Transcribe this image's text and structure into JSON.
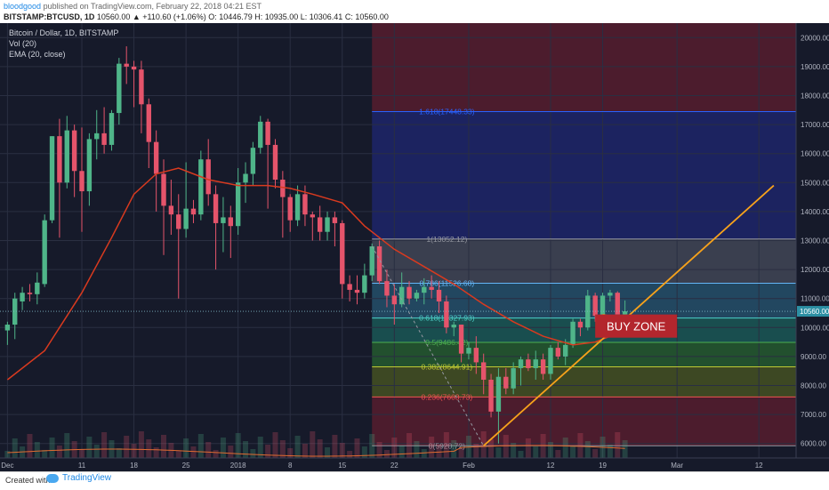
{
  "header": {
    "author": "bloodgood",
    "published": "published on TradingView.com, February 22, 2018 04:21 EST",
    "symbol": "BITSTAMP:BTCUSD, 1D",
    "quote": "10560.00 ▲ +110.60 (+1.06%) O: 10446.79 H: 10935.00 L: 10306.41 C: 10560.00"
  },
  "legend": {
    "title": "Bitcoin / Dollar, 1D, BITSTAMP",
    "vol": "Vol (20)",
    "ema": "EMA (20, close)"
  },
  "footer": {
    "created": "Created with",
    "brand": "TradingView"
  },
  "chart_data": {
    "type": "candlestick",
    "y_axis": {
      "range": [
        5500,
        20500
      ],
      "ticks": [
        "20000.00",
        "19000.00",
        "18000.00",
        "17000.00",
        "16000.00",
        "15000.00",
        "14000.00",
        "13000.00",
        "12000.00",
        "11000.00",
        "10000.00",
        "9000.00",
        "8000.00",
        "7000.00",
        "6000.00"
      ],
      "tick_values": [
        20000,
        19000,
        18000,
        17000,
        16000,
        15000,
        14000,
        13000,
        12000,
        11000,
        10000,
        9000,
        8000,
        7000,
        6000
      ]
    },
    "x_axis": {
      "ticks": [
        {
          "label": "Dec",
          "day": 0
        },
        {
          "label": "11",
          "day": 10
        },
        {
          "label": "18",
          "day": 17
        },
        {
          "label": "25",
          "day": 24
        },
        {
          "label": "2018",
          "day": 31
        },
        {
          "label": "8",
          "day": 38
        },
        {
          "label": "15",
          "day": 45
        },
        {
          "label": "22",
          "day": 52
        },
        {
          "label": "Feb",
          "day": 62
        },
        {
          "label": "12",
          "day": 73
        },
        {
          "label": "19",
          "day": 80
        },
        {
          "label": "Mar",
          "day": 90
        },
        {
          "label": "12",
          "day": 101
        }
      ],
      "day_range": [
        -1,
        106
      ]
    },
    "last_price": {
      "value": 10560,
      "label": "10560.00"
    },
    "candles": [
      {
        "o": 9900,
        "h": 10200,
        "l": 9400,
        "c": 10100
      },
      {
        "o": 10100,
        "h": 11200,
        "l": 9600,
        "c": 11000
      },
      {
        "o": 10900,
        "h": 11400,
        "l": 10600,
        "c": 11200
      },
      {
        "o": 11200,
        "h": 11500,
        "l": 10900,
        "c": 11150
      },
      {
        "o": 11150,
        "h": 11900,
        "l": 10800,
        "c": 11550
      },
      {
        "o": 11500,
        "h": 13900,
        "l": 11400,
        "c": 13700
      },
      {
        "o": 13700,
        "h": 16600,
        "l": 13600,
        "c": 16600
      },
      {
        "o": 16600,
        "h": 17200,
        "l": 13100,
        "c": 15000
      },
      {
        "o": 15000,
        "h": 17300,
        "l": 14800,
        "c": 16800
      },
      {
        "o": 16800,
        "h": 17000,
        "l": 14500,
        "c": 15400
      },
      {
        "o": 15400,
        "h": 16900,
        "l": 13300,
        "c": 14700
      },
      {
        "o": 14700,
        "h": 16700,
        "l": 14200,
        "c": 16500
      },
      {
        "o": 16500,
        "h": 17500,
        "l": 15800,
        "c": 16700
      },
      {
        "o": 16700,
        "h": 17600,
        "l": 16000,
        "c": 16300
      },
      {
        "o": 16300,
        "h": 17500,
        "l": 16100,
        "c": 17400
      },
      {
        "o": 17400,
        "h": 19300,
        "l": 17000,
        "c": 19100
      },
      {
        "o": 19100,
        "h": 19700,
        "l": 18400,
        "c": 19000
      },
      {
        "o": 19000,
        "h": 19200,
        "l": 17600,
        "c": 18900
      },
      {
        "o": 18900,
        "h": 19200,
        "l": 16700,
        "c": 17700
      },
      {
        "o": 17700,
        "h": 17900,
        "l": 15500,
        "c": 16400
      },
      {
        "o": 16400,
        "h": 16800,
        "l": 14000,
        "c": 15300
      },
      {
        "o": 15300,
        "h": 15800,
        "l": 12500,
        "c": 14200
      },
      {
        "o": 14200,
        "h": 15100,
        "l": 13200,
        "c": 13900
      },
      {
        "o": 13900,
        "h": 14600,
        "l": 11000,
        "c": 13400
      },
      {
        "o": 13400,
        "h": 15700,
        "l": 13100,
        "c": 14100
      },
      {
        "o": 14100,
        "h": 14400,
        "l": 13600,
        "c": 13900
      },
      {
        "o": 13900,
        "h": 16100,
        "l": 13700,
        "c": 15800
      },
      {
        "o": 15800,
        "h": 16500,
        "l": 14200,
        "c": 14600
      },
      {
        "o": 14600,
        "h": 14900,
        "l": 12000,
        "c": 13600
      },
      {
        "o": 13600,
        "h": 14500,
        "l": 12600,
        "c": 13800
      },
      {
        "o": 13800,
        "h": 14200,
        "l": 12400,
        "c": 13500
      },
      {
        "o": 13500,
        "h": 15500,
        "l": 13200,
        "c": 15000
      },
      {
        "o": 15000,
        "h": 15700,
        "l": 14300,
        "c": 15300
      },
      {
        "o": 15300,
        "h": 16400,
        "l": 14900,
        "c": 16200
      },
      {
        "o": 16200,
        "h": 17300,
        "l": 16000,
        "c": 17100
      },
      {
        "o": 17100,
        "h": 17200,
        "l": 14100,
        "c": 16300
      },
      {
        "o": 16300,
        "h": 16500,
        "l": 14800,
        "c": 15100
      },
      {
        "o": 15100,
        "h": 15400,
        "l": 13100,
        "c": 14500
      },
      {
        "o": 14500,
        "h": 14600,
        "l": 13300,
        "c": 13700
      },
      {
        "o": 13700,
        "h": 14900,
        "l": 13500,
        "c": 14600
      },
      {
        "o": 14600,
        "h": 14900,
        "l": 13500,
        "c": 13900
      },
      {
        "o": 13900,
        "h": 14000,
        "l": 13000,
        "c": 13800
      },
      {
        "o": 13800,
        "h": 14200,
        "l": 13000,
        "c": 13300
      },
      {
        "o": 13300,
        "h": 14000,
        "l": 13000,
        "c": 13800
      },
      {
        "o": 13800,
        "h": 14000,
        "l": 12800,
        "c": 13600
      },
      {
        "o": 13600,
        "h": 13700,
        "l": 11000,
        "c": 11500
      },
      {
        "o": 11500,
        "h": 11800,
        "l": 10900,
        "c": 11300
      },
      {
        "o": 11300,
        "h": 11800,
        "l": 10800,
        "c": 11200
      },
      {
        "o": 11200,
        "h": 12200,
        "l": 11000,
        "c": 11800
      },
      {
        "o": 11800,
        "h": 12900,
        "l": 11600,
        "c": 12800
      },
      {
        "o": 12800,
        "h": 13000,
        "l": 11500,
        "c": 11600
      },
      {
        "o": 11600,
        "h": 12000,
        "l": 10700,
        "c": 11100
      },
      {
        "o": 11100,
        "h": 11500,
        "l": 10100,
        "c": 10800
      },
      {
        "o": 10800,
        "h": 11900,
        "l": 10700,
        "c": 11400
      },
      {
        "o": 11400,
        "h": 11600,
        "l": 10800,
        "c": 11000
      },
      {
        "o": 11000,
        "h": 11300,
        "l": 10900,
        "c": 11200
      },
      {
        "o": 11200,
        "h": 11700,
        "l": 10800,
        "c": 11400
      },
      {
        "o": 11400,
        "h": 11800,
        "l": 11000,
        "c": 11300
      },
      {
        "o": 11300,
        "h": 11600,
        "l": 10500,
        "c": 10900
      },
      {
        "o": 10900,
        "h": 11100,
        "l": 9800,
        "c": 10000
      },
      {
        "o": 10000,
        "h": 10200,
        "l": 9700,
        "c": 10100
      },
      {
        "o": 10100,
        "h": 10100,
        "l": 8800,
        "c": 9100
      },
      {
        "o": 9100,
        "h": 9500,
        "l": 8900,
        "c": 9300
      },
      {
        "o": 9300,
        "h": 9700,
        "l": 8400,
        "c": 8800
      },
      {
        "o": 8800,
        "h": 9100,
        "l": 7700,
        "c": 8200
      },
      {
        "o": 8200,
        "h": 8400,
        "l": 6900,
        "c": 7100
      },
      {
        "o": 7100,
        "h": 8600,
        "l": 6000,
        "c": 8300
      },
      {
        "o": 8300,
        "h": 8600,
        "l": 7700,
        "c": 7900
      },
      {
        "o": 7900,
        "h": 8800,
        "l": 7700,
        "c": 8600
      },
      {
        "o": 8600,
        "h": 9000,
        "l": 8000,
        "c": 8900
      },
      {
        "o": 8900,
        "h": 9100,
        "l": 8500,
        "c": 8600
      },
      {
        "o": 8600,
        "h": 9200,
        "l": 8200,
        "c": 8900
      },
      {
        "o": 8900,
        "h": 9100,
        "l": 8200,
        "c": 8400
      },
      {
        "o": 8400,
        "h": 9400,
        "l": 8200,
        "c": 9300
      },
      {
        "o": 9300,
        "h": 9500,
        "l": 8900,
        "c": 9000
      },
      {
        "o": 9000,
        "h": 9600,
        "l": 8700,
        "c": 9400
      },
      {
        "o": 9400,
        "h": 10300,
        "l": 9300,
        "c": 10200
      },
      {
        "o": 10200,
        "h": 10300,
        "l": 9700,
        "c": 10000
      },
      {
        "o": 10000,
        "h": 11300,
        "l": 9900,
        "c": 11100
      },
      {
        "o": 11100,
        "h": 11200,
        "l": 10200,
        "c": 10400
      },
      {
        "o": 10400,
        "h": 11200,
        "l": 10200,
        "c": 11100
      },
      {
        "o": 11100,
        "h": 11300,
        "l": 10900,
        "c": 11200
      },
      {
        "o": 11200,
        "h": 11250,
        "l": 10500,
        "c": 10450
      },
      {
        "o": 10450,
        "h": 10935,
        "l": 10306,
        "c": 10560
      }
    ],
    "ema": [
      {
        "day": 0,
        "v": 8200
      },
      {
        "day": 5,
        "v": 9200
      },
      {
        "day": 10,
        "v": 11200
      },
      {
        "day": 14,
        "v": 13100
      },
      {
        "day": 17,
        "v": 14600
      },
      {
        "day": 20,
        "v": 15300
      },
      {
        "day": 23,
        "v": 15500
      },
      {
        "day": 27,
        "v": 15100
      },
      {
        "day": 31,
        "v": 14900
      },
      {
        "day": 35,
        "v": 14900
      },
      {
        "day": 38,
        "v": 14800
      },
      {
        "day": 41,
        "v": 14600
      },
      {
        "day": 45,
        "v": 14300
      },
      {
        "day": 48,
        "v": 13500
      },
      {
        "day": 52,
        "v": 12700
      },
      {
        "day": 56,
        "v": 12100
      },
      {
        "day": 60,
        "v": 11500
      },
      {
        "day": 64,
        "v": 10800
      },
      {
        "day": 68,
        "v": 10200
      },
      {
        "day": 72,
        "v": 9700
      },
      {
        "day": 76,
        "v": 9400
      },
      {
        "day": 79,
        "v": 9500
      },
      {
        "day": 82,
        "v": 9800
      }
    ],
    "fibonacci": {
      "start_day": 49,
      "end_day": 106,
      "levels": [
        {
          "label": "1.618(17448.33)",
          "value": 17448.33,
          "color": "#2962ff"
        },
        {
          "label": "1(13052.12)",
          "value": 13052.12,
          "color": "#9598a1"
        },
        {
          "label": "0.786(11526.68)",
          "value": 11526.68,
          "color": "#64b5f6"
        },
        {
          "label": "0.618(10327.93)",
          "value": 10327.93,
          "color": "#4dd0c8"
        },
        {
          "label": "0.5(9486.42)",
          "value": 9486.42,
          "color": "#4caf50"
        },
        {
          "label": "0.382(8644.91)",
          "value": 8644.91,
          "color": "#c0ca33"
        },
        {
          "label": "0.236(7603.73)",
          "value": 7603.73,
          "color": "#ef5350"
        },
        {
          "label": "0(5920.72)",
          "value": 5920.72,
          "color": "#9598a1"
        }
      ],
      "zones": [
        {
          "from": 20500,
          "to": 17448.33,
          "color": "#7a1f30"
        },
        {
          "from": 17448.33,
          "to": 13052.12,
          "color": "#232b8c"
        },
        {
          "from": 13052.12,
          "to": 11526.68,
          "color": "#5a5f6d"
        },
        {
          "from": 11526.68,
          "to": 10327.93,
          "color": "#2e6e8c"
        },
        {
          "from": 10327.93,
          "to": 9486.42,
          "color": "#1e7a6e"
        },
        {
          "from": 9486.42,
          "to": 8644.91,
          "color": "#2e7d32"
        },
        {
          "from": 8644.91,
          "to": 7603.73,
          "color": "#5f6f1e"
        },
        {
          "from": 7603.73,
          "to": 5920.72,
          "color": "#7a1f30"
        }
      ]
    },
    "drawings": {
      "fib_anchor_line": {
        "from": {
          "day": 49,
          "v": 12800
        },
        "to": {
          "day": 64,
          "v": 5920
        }
      },
      "trend_line": {
        "from": {
          "day": 64,
          "v": 5920
        },
        "to": {
          "day": 103,
          "v": 14900
        }
      },
      "support_line": {
        "from": {
          "day": 80,
          "v": 10450
        },
        "to": {
          "day": 86,
          "v": 10100
        }
      },
      "buy_zone": {
        "label": "BUY ZONE",
        "day_from": 79,
        "day_to": 90,
        "v_top": 10450,
        "v_bottom": 9650
      }
    },
    "colors": {
      "up": "#4fb589",
      "down": "#e5546b",
      "ema": "#d93a1f",
      "trend": "#f7a21b",
      "vol_ma": "#e06b30"
    }
  }
}
